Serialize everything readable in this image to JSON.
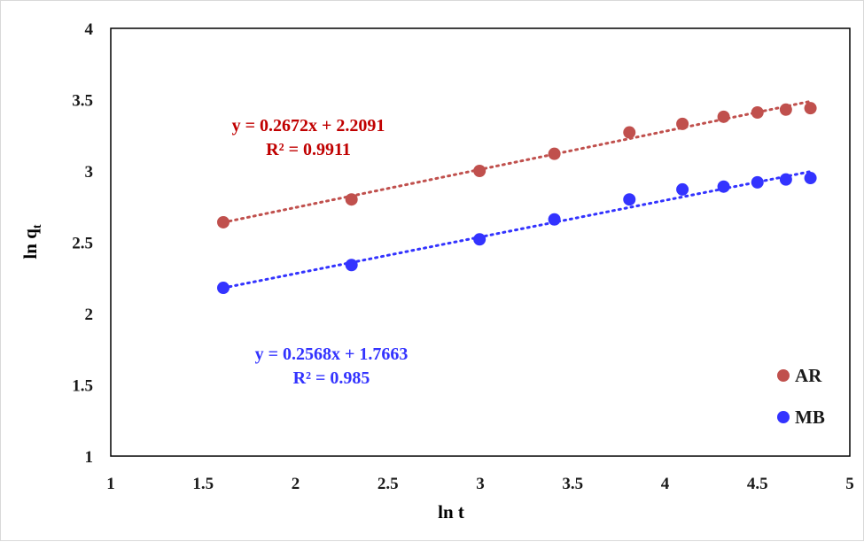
{
  "chart_data": {
    "type": "scatter",
    "title": "",
    "xlabel": "ln t",
    "ylabel_main": "ln q",
    "ylabel_sub": "t",
    "xlim": [
      1,
      5
    ],
    "ylim": [
      1,
      4
    ],
    "x_ticks": [
      "1",
      "1.5",
      "2",
      "2.5",
      "3",
      "3.5",
      "4",
      "4.5",
      "5"
    ],
    "y_ticks": [
      "1",
      "1.5",
      "2",
      "2.5",
      "3",
      "3.5",
      "4"
    ],
    "grid": false,
    "legend_position": "bottom-right",
    "series": [
      {
        "name": "AR",
        "color": "#c0504d",
        "x": [
          1.609,
          2.303,
          2.996,
          3.401,
          3.807,
          4.094,
          4.317,
          4.5,
          4.654,
          4.787
        ],
        "y": [
          2.64,
          2.8,
          3.0,
          3.12,
          3.27,
          3.33,
          3.38,
          3.41,
          3.43,
          3.44
        ],
        "trendline": {
          "slope": 0.2672,
          "intercept": 2.2091,
          "equation": "y = 0.2672x + 2.2091",
          "r2": "R² = 0.9911"
        }
      },
      {
        "name": "MB",
        "color": "#3333ff",
        "x": [
          1.609,
          2.303,
          2.996,
          3.401,
          3.807,
          4.094,
          4.317,
          4.5,
          4.654,
          4.787
        ],
        "y": [
          2.18,
          2.34,
          2.52,
          2.66,
          2.8,
          2.87,
          2.89,
          2.92,
          2.94,
          2.95
        ],
        "trendline": {
          "slope": 0.2568,
          "intercept": 1.7663,
          "equation": "y = 0.2568x + 1.7663",
          "r2": "R² = 0.985"
        }
      }
    ]
  }
}
